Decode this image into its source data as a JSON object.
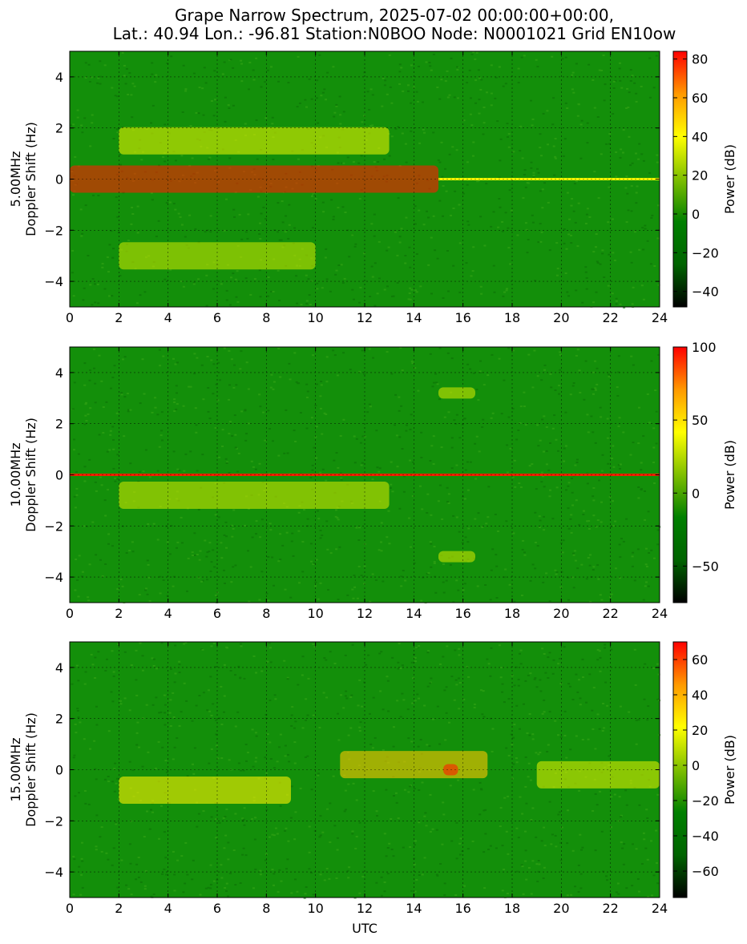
{
  "title_line1": "Grape Narrow Spectrum, 2025-07-02 00:00:00+00:00,",
  "title_line2": "Lat.: 40.94 Lon.: -96.81 Station:N0BOO Node: N0001021 Grid EN10ow",
  "colors": {
    "colormap": [
      "#000000",
      "#006400",
      "#008000",
      "#7fbf00",
      "#ffff00",
      "#ff9900",
      "#ff0000"
    ],
    "grid": "#000000",
    "background": "#ffffff"
  },
  "chart_data": [
    {
      "type": "heatmap",
      "panel": "5MHz",
      "ylabel_line1": "5.00MHz",
      "ylabel_line2": "Doppler Shift (Hz)",
      "xlabel": "",
      "xlim": [
        0,
        24
      ],
      "ylim": [
        -5,
        5
      ],
      "xticks": [
        0,
        2,
        4,
        6,
        8,
        10,
        12,
        14,
        16,
        18,
        20,
        22,
        24
      ],
      "yticks": [
        -4,
        -2,
        0,
        2,
        4
      ],
      "grid": true,
      "colorbar": {
        "label": "Power (dB)",
        "range": [
          -48,
          84
        ],
        "ticks": [
          -40,
          -20,
          0,
          20,
          40,
          60,
          80
        ]
      },
      "features": [
        {
          "utc_range": [
            0,
            15
          ],
          "doppler_hz": 0.0,
          "peak_db": 80,
          "description": "strong carrier band with spread"
        },
        {
          "utc_range": [
            15,
            24
          ],
          "doppler_hz": 0.0,
          "peak_db": 40,
          "description": "narrow carrier line"
        },
        {
          "utc_range": [
            2,
            13
          ],
          "doppler_hz": 1.5,
          "peak_db": 35,
          "description": "upper doppler spread"
        },
        {
          "utc_range": [
            2,
            10
          ],
          "doppler_hz": -3.0,
          "peak_db": 30,
          "description": "lower doppler spread"
        }
      ]
    },
    {
      "type": "heatmap",
      "panel": "10MHz",
      "ylabel_line1": "10.00MHz",
      "ylabel_line2": "Doppler Shift (Hz)",
      "xlabel": "",
      "xlim": [
        0,
        24
      ],
      "ylim": [
        -5,
        5
      ],
      "xticks": [
        0,
        2,
        4,
        6,
        8,
        10,
        12,
        14,
        16,
        18,
        20,
        22,
        24
      ],
      "yticks": [
        -4,
        -2,
        0,
        2,
        4
      ],
      "grid": true,
      "colorbar": {
        "label": "Power (dB)",
        "range": [
          -75,
          100
        ],
        "ticks": [
          -50,
          0,
          50,
          100
        ]
      },
      "features": [
        {
          "utc_range": [
            0,
            24
          ],
          "doppler_hz": 0.0,
          "peak_db": 95,
          "description": "strong carrier line"
        },
        {
          "utc_range": [
            2,
            13
          ],
          "doppler_hz": -0.8,
          "peak_db": 30,
          "description": "doppler spread"
        },
        {
          "utc_range": [
            15,
            16.5
          ],
          "doppler_hz": 3.2,
          "peak_db": 30,
          "description": "upper sideband blob"
        },
        {
          "utc_range": [
            15,
            16.5
          ],
          "doppler_hz": -3.2,
          "peak_db": 30,
          "description": "lower sideband blob"
        }
      ]
    },
    {
      "type": "heatmap",
      "panel": "15MHz",
      "ylabel_line1": "15.00MHz",
      "ylabel_line2": "Doppler Shift (Hz)",
      "xlabel": "UTC",
      "xlim": [
        0,
        24
      ],
      "ylim": [
        -5,
        5
      ],
      "xticks": [
        0,
        2,
        4,
        6,
        8,
        10,
        12,
        14,
        16,
        18,
        20,
        22,
        24
      ],
      "yticks": [
        -4,
        -2,
        0,
        2,
        4
      ],
      "grid": true,
      "colorbar": {
        "label": "Power (dB)",
        "range": [
          -75,
          70
        ],
        "ticks": [
          -60,
          -40,
          -20,
          0,
          20,
          40,
          60
        ]
      },
      "features": [
        {
          "utc_range": [
            2,
            9
          ],
          "doppler_hz": -0.8,
          "peak_db": 25,
          "description": "yellow spread trace"
        },
        {
          "utc_range": [
            11,
            17
          ],
          "doppler_hz": 0.2,
          "peak_db": 35,
          "description": "afternoon trace"
        },
        {
          "utc_range": [
            15.2,
            15.8
          ],
          "doppler_hz": 0.0,
          "peak_db": 65,
          "description": "red hotspot"
        },
        {
          "utc_range": [
            19,
            24
          ],
          "doppler_hz": -0.2,
          "peak_db": 15,
          "description": "evening trace"
        }
      ]
    }
  ]
}
